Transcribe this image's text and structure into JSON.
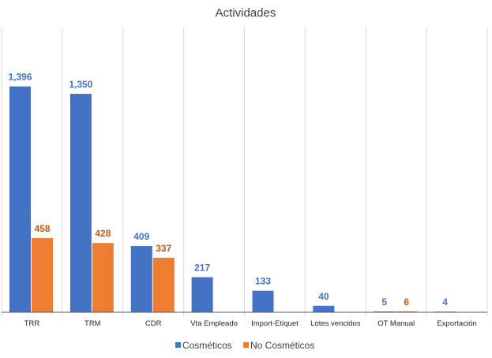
{
  "chart_data": {
    "type": "bar",
    "title": "Actividades",
    "xlabel": "",
    "ylabel": "",
    "categories": [
      "TRR",
      "TRM",
      "CDR",
      "Vta Empleado",
      "Import-Etiquet",
      "Lotes vencidos",
      "OT Manual",
      "Exportación"
    ],
    "series": [
      {
        "name": "Cosméticos",
        "color": "#4472c4",
        "label_color": "#4472c4",
        "values": [
          1396,
          1350,
          409,
          217,
          133,
          40,
          5,
          4
        ],
        "labels": [
          "1,396",
          "1,350",
          "409",
          "217",
          "133",
          "40",
          "5",
          "4"
        ]
      },
      {
        "name": "No Cosméticos",
        "color": "#ed7d31",
        "label_color": "#c55a11",
        "values": [
          458,
          428,
          337,
          null,
          null,
          null,
          6,
          null
        ],
        "labels": [
          "458",
          "428",
          "337",
          null,
          null,
          null,
          "6",
          null
        ]
      }
    ],
    "ylim": [
      0,
      1550
    ],
    "grid": "vertical-category-separators",
    "legend": "bottom-center"
  }
}
